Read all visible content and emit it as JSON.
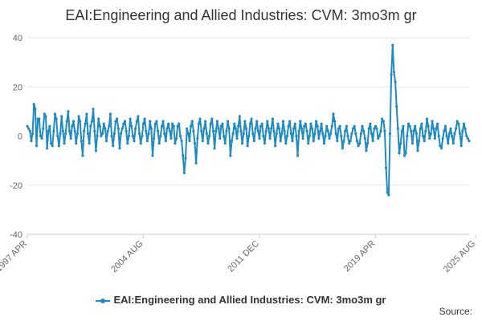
{
  "chart_data": {
    "type": "line",
    "title": "EAI:Engineering and Allied Industries: CVM: 3mo3m gr",
    "ylim": [
      -40,
      40
    ],
    "y_ticks": [
      "40",
      "20",
      "0",
      "-20",
      "-40"
    ],
    "y_tick_values": [
      40,
      20,
      0,
      -20,
      -40
    ],
    "x_tick_labels": [
      "1997 APR",
      "2004 AUG",
      "2011 DEC",
      "2019 APR",
      "2025 AUG"
    ],
    "x_tick_months": [
      0,
      88,
      176,
      264,
      340
    ],
    "start": "1997 APR",
    "end": "2025 AUG",
    "grid": true,
    "legend": "bottom-center",
    "series": [
      {
        "name": "EAI:Engineering and Allied Industries: CVM: 3mo3m gr",
        "color": "#1f8ac0",
        "values": [
          4,
          3,
          2,
          -2,
          1,
          13,
          11,
          -4,
          7,
          7,
          0,
          -1,
          3,
          9,
          8,
          -5,
          2,
          4,
          -3,
          -4,
          2,
          9,
          7,
          0,
          -4,
          1,
          8,
          2,
          -3,
          1,
          6,
          10,
          2,
          -1,
          4,
          6,
          2,
          -3,
          1,
          8,
          6,
          -2,
          -8,
          2,
          5,
          9,
          1,
          -3,
          4,
          6,
          11,
          2,
          -6,
          0,
          7,
          4,
          0,
          1,
          5,
          3,
          -2,
          2,
          4,
          9,
          0,
          -4,
          1,
          6,
          7,
          3,
          -5,
          1,
          3,
          5,
          6,
          2,
          -3,
          0,
          7,
          4,
          0,
          -2,
          3,
          6,
          8,
          1,
          -3,
          0,
          5,
          7,
          2,
          -2,
          1,
          6,
          3,
          -8,
          -1,
          5,
          6,
          2,
          -3,
          0,
          4,
          6,
          1,
          -2,
          3,
          5,
          2,
          -1,
          5,
          4,
          -3,
          -1,
          4,
          5,
          0,
          -2,
          -8,
          -15,
          -9,
          3,
          1,
          -2,
          4,
          6,
          2,
          -3,
          -11,
          -1,
          5,
          7,
          2,
          -2,
          3,
          6,
          1,
          -3,
          0,
          5,
          7,
          2,
          -5,
          2,
          6,
          3,
          -1,
          4,
          5,
          0,
          -3,
          2,
          6,
          3,
          -8,
          -2,
          1,
          5,
          3,
          -1,
          4,
          8,
          2,
          -3,
          1,
          6,
          3,
          -4,
          0,
          5,
          7,
          1,
          -2,
          3,
          6,
          2,
          -1,
          4,
          5,
          0,
          -3,
          2,
          6,
          3,
          -1,
          3,
          7,
          2,
          -4,
          1,
          5,
          3,
          -2,
          1,
          6,
          2,
          -3,
          0,
          4,
          6,
          1,
          -2,
          3,
          5,
          0,
          -8,
          2,
          6,
          3,
          -1,
          4,
          5,
          2,
          -3,
          0,
          5,
          3,
          -2,
          1,
          6,
          4,
          -1,
          2,
          5,
          1,
          -3,
          0,
          4,
          2,
          -1,
          1,
          4,
          9,
          6,
          1,
          -2,
          3,
          4,
          0,
          -5,
          -2,
          2,
          4,
          0,
          -3,
          -2,
          1,
          3,
          4,
          1,
          -2,
          -4,
          -3,
          1,
          4,
          2,
          -1,
          -6,
          -3,
          3,
          5,
          1,
          -2,
          3,
          4,
          3,
          -1,
          0,
          2,
          7,
          6,
          2,
          -13,
          -23,
          -24,
          1,
          25,
          37,
          26,
          22,
          12,
          3,
          -7,
          -3,
          2,
          4,
          -8,
          -7,
          0,
          5,
          4,
          2,
          -3,
          2,
          4,
          1,
          -6,
          -2,
          3,
          5,
          0,
          -2,
          2,
          7,
          4,
          -1,
          1,
          6,
          3,
          -1,
          3,
          5,
          0,
          -4,
          -5,
          -1,
          2,
          4,
          0,
          -3,
          1,
          3,
          0,
          -3,
          1,
          3,
          6,
          5,
          1,
          -4,
          2,
          5,
          3,
          0,
          -1,
          -2
        ]
      }
    ]
  },
  "legend_label": "EAI:Engineering and Allied Industries: CVM: 3mo3m gr",
  "source_label": "Source:"
}
